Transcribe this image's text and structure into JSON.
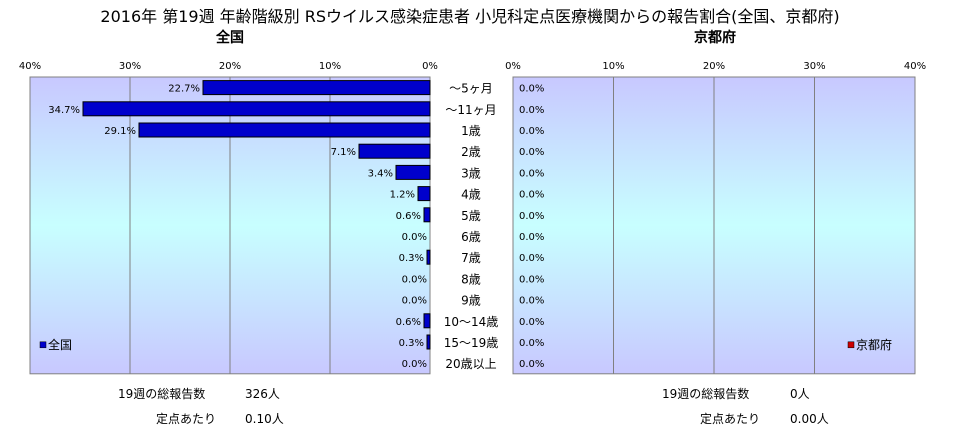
{
  "title": "2016年 第19週 年齢階級別 RSウイルス感染症患者 小児科定点医療機関からの報告割合(全国、京都府)",
  "chart_data": [
    {
      "type": "bar",
      "orientation": "horizontal",
      "direction": "right-to-left",
      "subtitle": "全国",
      "xlim": [
        0,
        40
      ],
      "ticks": [
        "40%",
        "30%",
        "20%",
        "10%",
        "0%"
      ],
      "legend": {
        "label": "全国",
        "position": "bottom-left",
        "color": "#0000cc"
      },
      "categories": [
        "〜5ヶ月",
        "〜11ヶ月",
        "1歳",
        "2歳",
        "3歳",
        "4歳",
        "5歳",
        "6歳",
        "7歳",
        "8歳",
        "9歳",
        "10〜14歳",
        "15〜19歳",
        "20歳以上"
      ],
      "values": [
        22.7,
        34.7,
        29.1,
        7.1,
        3.4,
        1.2,
        0.6,
        0.0,
        0.3,
        0.0,
        0.0,
        0.6,
        0.3,
        0.0
      ],
      "labels": [
        "22.7%",
        "34.7%",
        "29.1%",
        "7.1%",
        "3.4%",
        "1.2%",
        "0.6%",
        "0.0%",
        "0.3%",
        "0.0%",
        "0.0%",
        "0.6%",
        "0.3%",
        "0.0%"
      ],
      "bar_color": "#0000cc",
      "grid": true
    },
    {
      "type": "bar",
      "orientation": "horizontal",
      "direction": "left-to-right",
      "subtitle": "京都府",
      "xlim": [
        0,
        40
      ],
      "ticks": [
        "0%",
        "10%",
        "20%",
        "30%",
        "40%"
      ],
      "legend": {
        "label": "京都府",
        "position": "bottom-right",
        "color": "#cc0000"
      },
      "categories": [
        "〜5ヶ月",
        "〜11ヶ月",
        "1歳",
        "2歳",
        "3歳",
        "4歳",
        "5歳",
        "6歳",
        "7歳",
        "8歳",
        "9歳",
        "10〜14歳",
        "15〜19歳",
        "20歳以上"
      ],
      "values": [
        0,
        0,
        0,
        0,
        0,
        0,
        0,
        0,
        0,
        0,
        0,
        0,
        0,
        0
      ],
      "labels": [
        "0.0%",
        "0.0%",
        "0.0%",
        "0.0%",
        "0.0%",
        "0.0%",
        "0.0%",
        "0.0%",
        "0.0%",
        "0.0%",
        "0.0%",
        "0.0%",
        "0.0%",
        "0.0%"
      ],
      "bar_color": "#cc0000",
      "grid": true
    }
  ],
  "summary": {
    "left": {
      "total_label": "19週の総報告数",
      "total_value": "326人",
      "per_label": "定点あたり",
      "per_value": "0.10人"
    },
    "right": {
      "total_label": "19週の総報告数",
      "total_value": "0人",
      "per_label": "定点あたり",
      "per_value": "0.00人"
    }
  },
  "colors": {
    "plot_bg_top": "#c8c8ff",
    "plot_bg_mid": "#c8ffff",
    "grid": "#808080"
  }
}
